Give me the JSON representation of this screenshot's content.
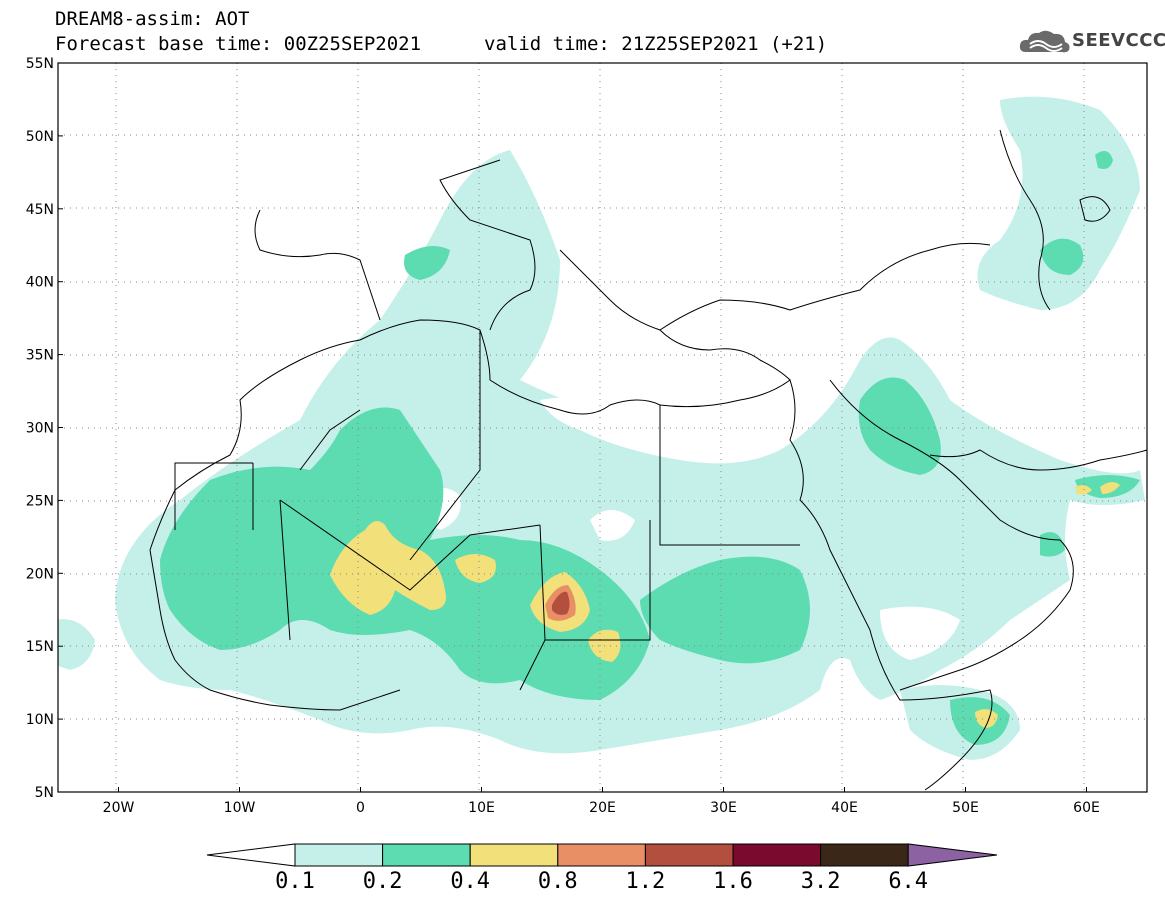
{
  "header": {
    "line1": "DREAM8-assim: AOT",
    "line2": "Forecast base time: 00Z25SEP2021",
    "valid": "valid time: 21Z25SEP2021 (+21)"
  },
  "logo": {
    "text": "SEEVCCC",
    "icon": "cloud-logo-icon"
  },
  "map": {
    "lon_range": [
      -25,
      65
    ],
    "lat_range": [
      5,
      55
    ],
    "lat_ticks": [
      "5N",
      "10N",
      "15N",
      "20N",
      "25N",
      "30N",
      "35N",
      "40N",
      "45N",
      "50N",
      "55N"
    ],
    "lon_ticks": [
      "20W",
      "10W",
      "0",
      "10E",
      "20E",
      "30E",
      "40E",
      "50E",
      "60E"
    ],
    "gridlines": "dotted"
  },
  "colorbar": {
    "colors": [
      "#c5f0ea",
      "#5ddcb1",
      "#f2e07a",
      "#e88f66",
      "#b34f3f",
      "#7a0a2e",
      "#3b2718",
      "#8d62a3"
    ],
    "labels": [
      "0.1",
      "0.2",
      "0.4",
      "0.8",
      "1.2",
      "1.6",
      "3.2",
      "6.4"
    ]
  }
}
